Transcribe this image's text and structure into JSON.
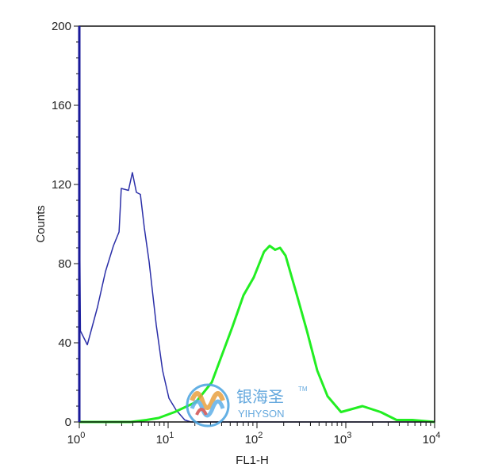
{
  "chart_data": {
    "type": "line",
    "subtype": "flow-cytometry-histogram",
    "xlabel": "FL1-H",
    "ylabel": "Counts",
    "xscale": "log",
    "xlim": [
      1,
      10000
    ],
    "ylim": [
      0,
      200
    ],
    "x_ticks": [
      {
        "base": "10",
        "exp": "0",
        "value": 1
      },
      {
        "base": "10",
        "exp": "1",
        "value": 10
      },
      {
        "base": "10",
        "exp": "2",
        "value": 100
      },
      {
        "base": "10",
        "exp": "3",
        "value": 1000
      },
      {
        "base": "10",
        "exp": "4",
        "value": 10000
      }
    ],
    "y_ticks": [
      "0",
      "40",
      "80",
      "120",
      "160",
      "200"
    ],
    "grid": false,
    "legend": "none",
    "series": [
      {
        "color": "#2b2fa8",
        "points": [
          [
            1,
            0
          ],
          [
            1,
            124
          ],
          [
            1.03,
            46
          ],
          [
            1.23,
            39
          ],
          [
            1.6,
            58
          ],
          [
            1.97,
            76
          ],
          [
            2.42,
            89
          ],
          [
            2.8,
            96
          ],
          [
            2.97,
            118
          ],
          [
            3.58,
            117
          ],
          [
            3.96,
            126
          ],
          [
            4.39,
            116
          ],
          [
            4.87,
            115
          ],
          [
            5.4,
            98
          ],
          [
            6.11,
            81
          ],
          [
            7.35,
            49
          ],
          [
            8.66,
            26
          ],
          [
            10.2,
            12
          ],
          [
            12.3,
            6
          ],
          [
            15.4,
            1
          ],
          [
            18,
            0
          ],
          [
            10000,
            0
          ]
        ]
      },
      {
        "color": "#22ee22",
        "points": [
          [
            1,
            0
          ],
          [
            3.8,
            0
          ],
          [
            5.7,
            1
          ],
          [
            7.8,
            2
          ],
          [
            11.8,
            5
          ],
          [
            20.5,
            10
          ],
          [
            31,
            20
          ],
          [
            40.5,
            34
          ],
          [
            52.9,
            48
          ],
          [
            70.5,
            64
          ],
          [
            92,
            73
          ],
          [
            120,
            86
          ],
          [
            139,
            89
          ],
          [
            160,
            87
          ],
          [
            182,
            88
          ],
          [
            210,
            84
          ],
          [
            274,
            66
          ],
          [
            365,
            46
          ],
          [
            477,
            26
          ],
          [
            623,
            13
          ],
          [
            884,
            5
          ],
          [
            1540,
            8
          ],
          [
            2470,
            5
          ],
          [
            3730,
            1
          ],
          [
            5620,
            1
          ],
          [
            10000,
            0
          ]
        ]
      }
    ]
  },
  "watermark": {
    "text_cn": "银海圣",
    "tm": "TM",
    "text_en": "YIHYSON"
  }
}
